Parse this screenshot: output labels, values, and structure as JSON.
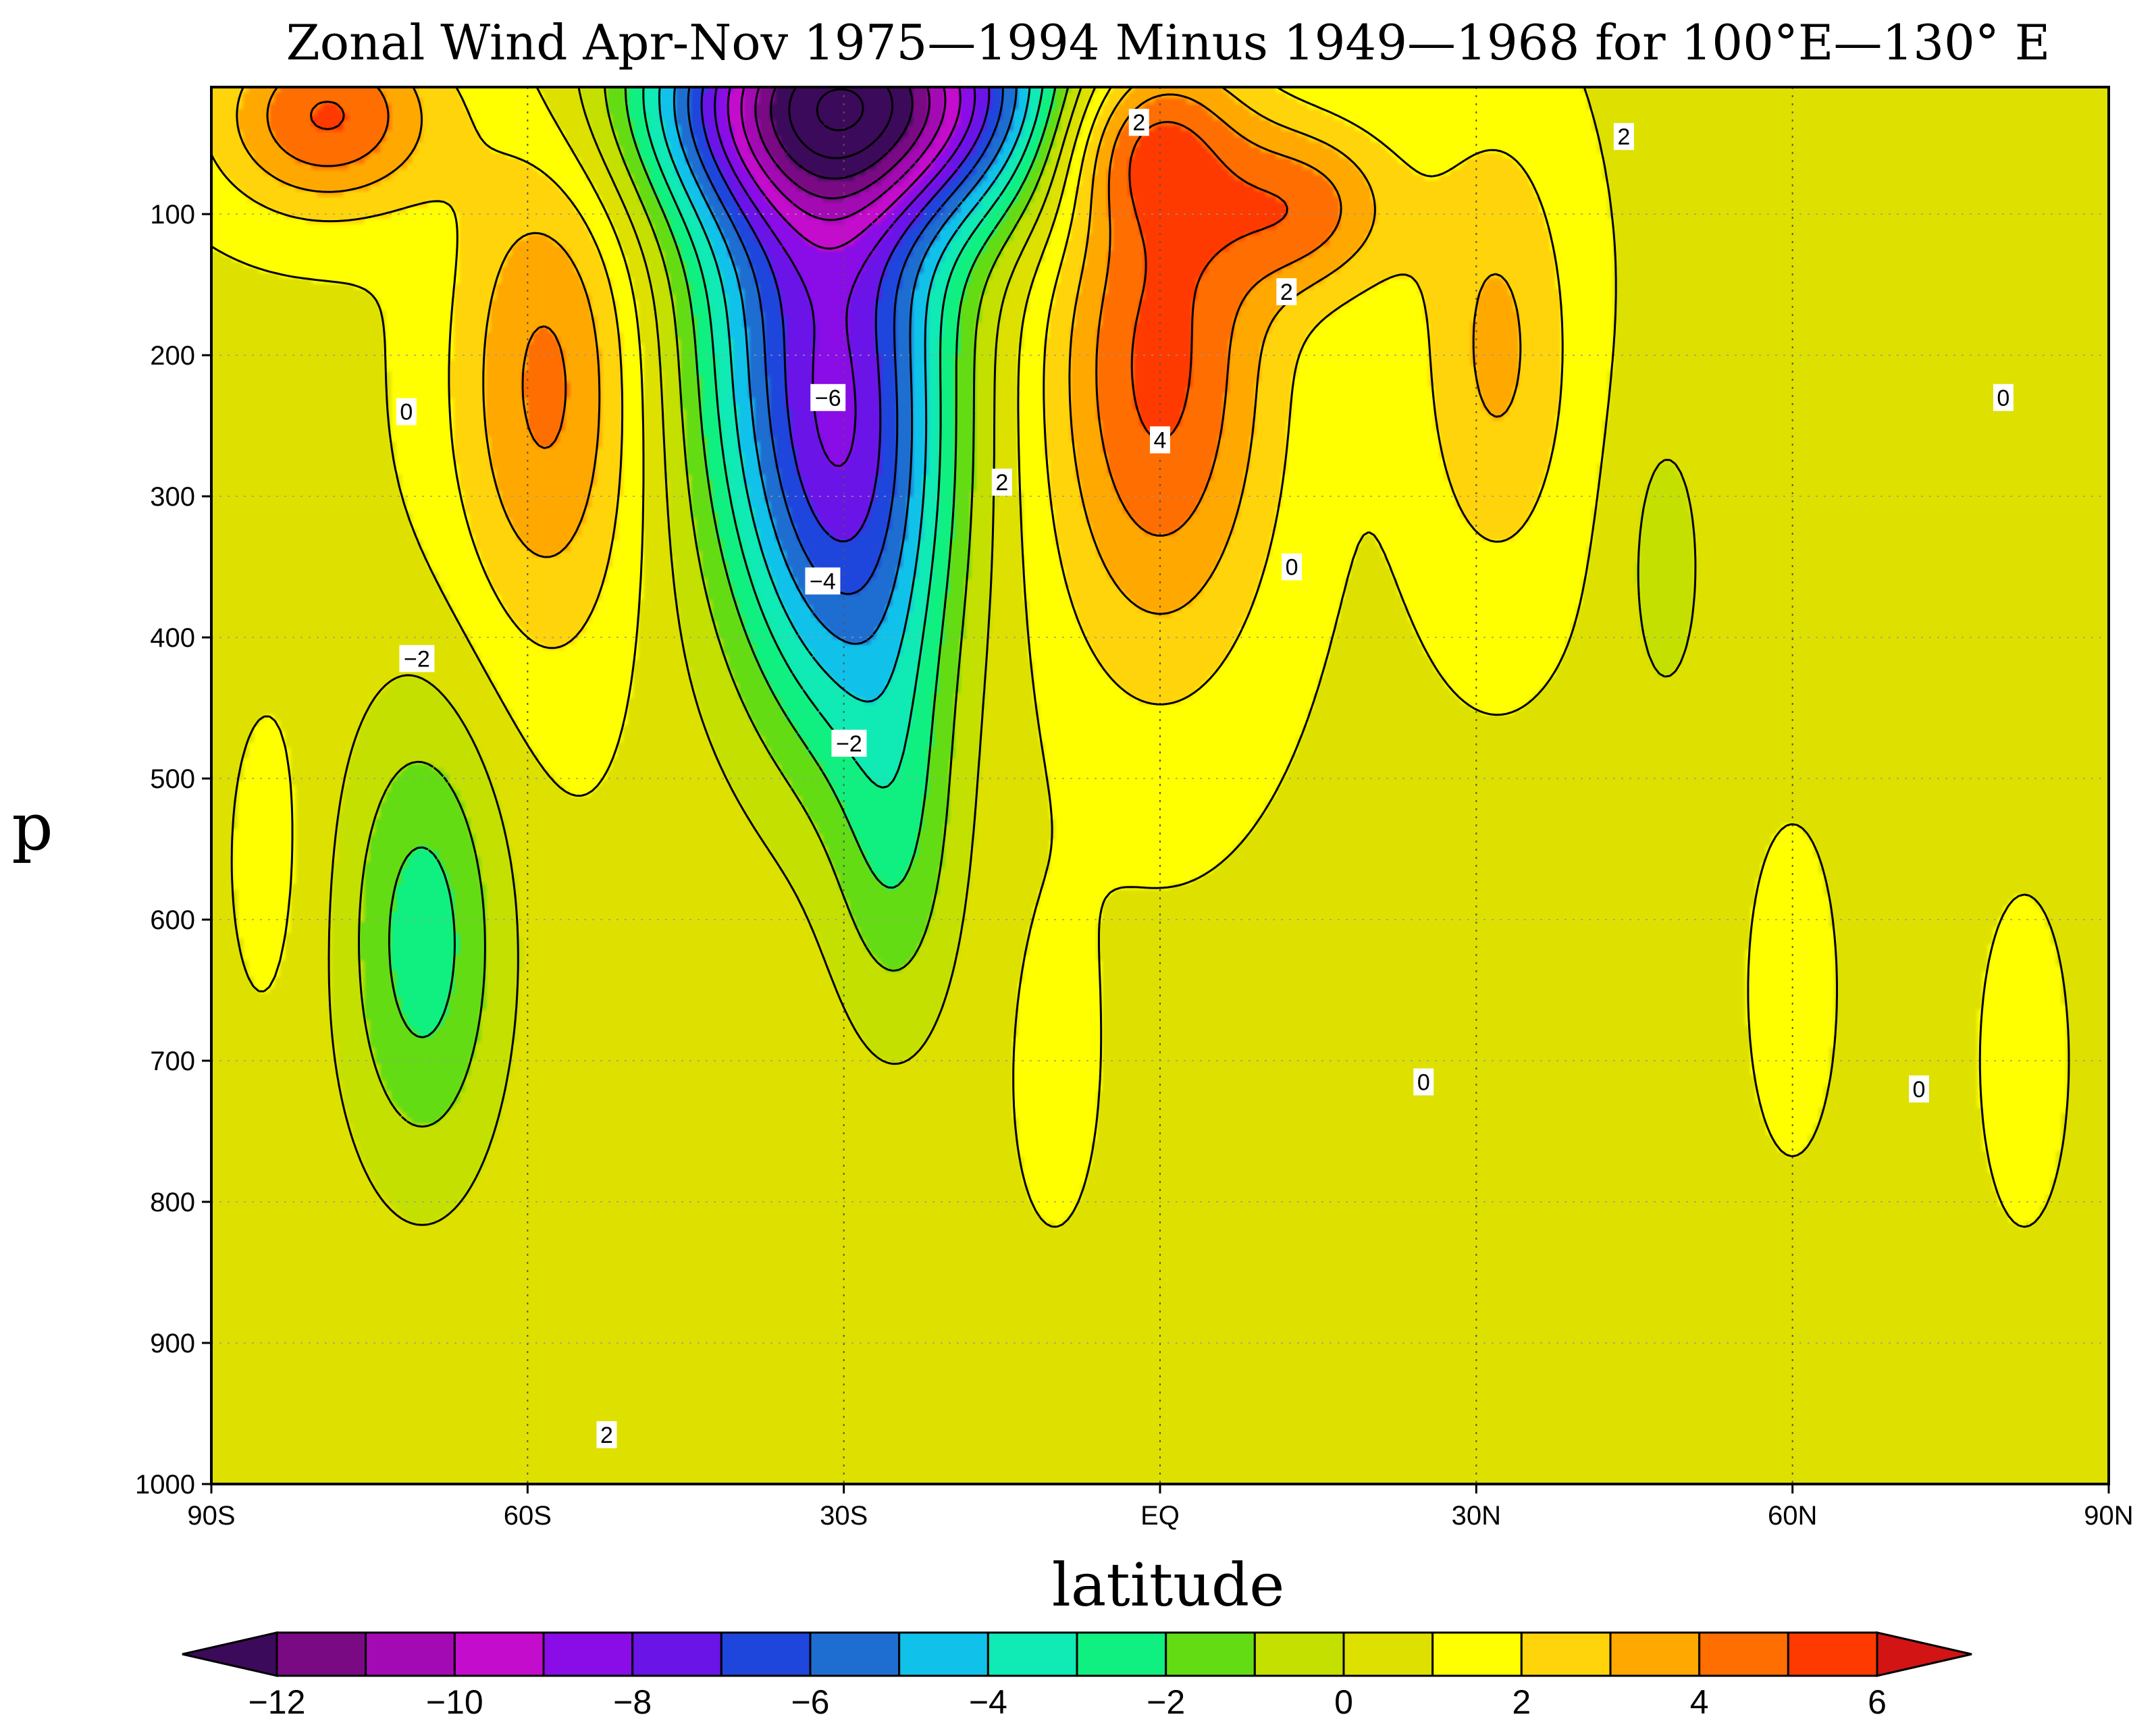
{
  "chart_data": {
    "type": "contour",
    "title": "Zonal Wind Apr-Nov 1975—1994 Minus 1949—1968 for 100°E—130° E",
    "xlabel": "latitude",
    "ylabel": "p",
    "x_ticks": [
      {
        "value": -90,
        "label": "90S"
      },
      {
        "value": -60,
        "label": "60S"
      },
      {
        "value": -30,
        "label": "30S"
      },
      {
        "value": 0,
        "label": "EQ"
      },
      {
        "value": 30,
        "label": "30N"
      },
      {
        "value": 60,
        "label": "60N"
      },
      {
        "value": 90,
        "label": "90N"
      }
    ],
    "y_ticks": [
      {
        "value": 100,
        "label": "100"
      },
      {
        "value": 200,
        "label": "200"
      },
      {
        "value": 300,
        "label": "300"
      },
      {
        "value": 400,
        "label": "400"
      },
      {
        "value": 500,
        "label": "500"
      },
      {
        "value": 600,
        "label": "600"
      },
      {
        "value": 700,
        "label": "700"
      },
      {
        "value": 800,
        "label": "800"
      },
      {
        "value": 900,
        "label": "900"
      },
      {
        "value": 1000,
        "label": "1000"
      }
    ],
    "xlim": [
      -90,
      90
    ],
    "ylim": [
      1000,
      10
    ],
    "contour_interval": 1,
    "negative_contours": "dashed",
    "contour_labels": [
      {
        "text": "2",
        "lat": -2,
        "p": 35
      },
      {
        "text": "2",
        "lat": 44,
        "p": 45
      },
      {
        "text": "2",
        "lat": 12,
        "p": 155
      },
      {
        "text": "0",
        "lat": -71.5,
        "p": 240
      },
      {
        "text": "−6",
        "lat": -31.5,
        "p": 230
      },
      {
        "text": "−4",
        "lat": -32,
        "p": 360
      },
      {
        "text": "−2",
        "lat": -70.5,
        "p": 415
      },
      {
        "text": "−2",
        "lat": -29.5,
        "p": 475
      },
      {
        "text": "4",
        "lat": 0,
        "p": 260
      },
      {
        "text": "2",
        "lat": -15,
        "p": 290
      },
      {
        "text": "0",
        "lat": 12.5,
        "p": 350
      },
      {
        "text": "0",
        "lat": 80,
        "p": 230
      },
      {
        "text": "0",
        "lat": 25,
        "p": 715
      },
      {
        "text": "0",
        "lat": 72,
        "p": 720
      },
      {
        "text": "2",
        "lat": -52.5,
        "p": 965
      }
    ],
    "features": [
      {
        "sign": "negative",
        "peak": -11,
        "lat": -28,
        "p": 15
      },
      {
        "sign": "negative",
        "peak": -6.6,
        "lat": -33,
        "p": 165
      },
      {
        "sign": "negative",
        "peak": -4.5,
        "lat": -29,
        "p": 310
      },
      {
        "sign": "negative",
        "peak": -2.5,
        "lat": -25,
        "p": 550
      },
      {
        "sign": "negative",
        "peak": -3.6,
        "lat": -70,
        "p": 615
      },
      {
        "sign": "positive",
        "peak": 5.3,
        "lat": -79,
        "p": 30
      },
      {
        "sign": "positive",
        "peak": 4.5,
        "lat": -58,
        "p": 220
      },
      {
        "sign": "positive",
        "peak": 5.5,
        "lat": 0,
        "p": 205
      },
      {
        "sign": "positive",
        "peak": 4.3,
        "lat": 14,
        "p": 95
      },
      {
        "sign": "positive",
        "peak": 3.4,
        "lat": 32,
        "p": 195
      },
      {
        "sign": "positive",
        "peak": 4.3,
        "lat": -2,
        "p": 45
      },
      {
        "sign": "negative",
        "peak": -1.5,
        "lat": 48,
        "p": 350
      },
      {
        "sign": "positive",
        "peak": 1.5,
        "lat": 60,
        "p": 650
      },
      {
        "sign": "positive",
        "peak": 1.5,
        "lat": 82,
        "p": 700
      },
      {
        "sign": "positive",
        "peak": 1.5,
        "lat": -10,
        "p": 700
      },
      {
        "sign": "positive",
        "peak": 1.5,
        "lat": -84,
        "p": 560
      }
    ],
    "colorbar": {
      "boundaries": [
        -12,
        -11,
        -10,
        -9,
        -8,
        -7,
        -6,
        -5,
        -4,
        -3,
        -2,
        -1,
        0,
        1,
        2,
        3,
        4,
        5,
        6
      ],
      "colors": [
        "#3c0a5a",
        "#7a0a84",
        "#a40ab4",
        "#c40ccc",
        "#8a0ce6",
        "#6a14e8",
        "#1e46dc",
        "#1e6ed2",
        "#10c2ea",
        "#10eab4",
        "#10f080",
        "#64dc14",
        "#c4e000",
        "#dee000",
        "#ffff00",
        "#ffd40a",
        "#ffa800",
        "#ff6e00",
        "#ff3a00",
        "#d21414"
      ],
      "labels": [
        {
          "value": -12,
          "text": "−12"
        },
        {
          "value": -10,
          "text": "−10"
        },
        {
          "value": -8,
          "text": "−8"
        },
        {
          "value": -6,
          "text": "−6"
        },
        {
          "value": -4,
          "text": "−4"
        },
        {
          "value": -2,
          "text": "−2"
        },
        {
          "value": 0,
          "text": "0"
        },
        {
          "value": 2,
          "text": "2"
        },
        {
          "value": 4,
          "text": "4"
        },
        {
          "value": 6,
          "text": "6"
        }
      ]
    }
  }
}
